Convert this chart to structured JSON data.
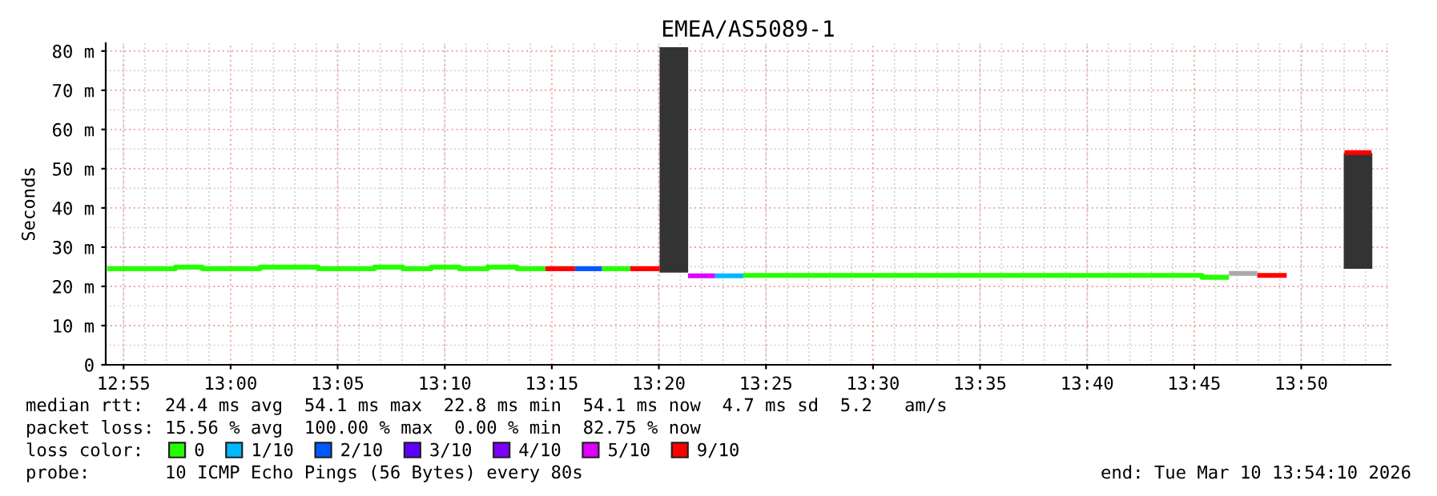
{
  "chart_data": {
    "type": "line",
    "title": "EMEA/AS5089-1",
    "ylabel": "Seconds",
    "xlim": [
      12.9028,
      13.9028
    ],
    "xticks": [
      {
        "value": 12.9167,
        "label": "12:55"
      },
      {
        "value": 13.0,
        "label": "13:00"
      },
      {
        "value": 13.0833,
        "label": "13:05"
      },
      {
        "value": 13.1667,
        "label": "13:10"
      },
      {
        "value": 13.25,
        "label": "13:15"
      },
      {
        "value": 13.3333,
        "label": "13:20"
      },
      {
        "value": 13.4167,
        "label": "13:25"
      },
      {
        "value": 13.5,
        "label": "13:30"
      },
      {
        "value": 13.5833,
        "label": "13:35"
      },
      {
        "value": 13.6667,
        "label": "13:40"
      },
      {
        "value": 13.75,
        "label": "13:45"
      },
      {
        "value": 13.8333,
        "label": "13:50"
      }
    ],
    "ylim": [
      0,
      82
    ],
    "yticks": [
      0,
      {
        "value": 10,
        "label": "10 m"
      },
      {
        "value": 20,
        "label": "20 m"
      },
      {
        "value": 30,
        "label": "30 m"
      },
      {
        "value": 40,
        "label": "40 m"
      },
      {
        "value": 50,
        "label": "50 m"
      },
      {
        "value": 60,
        "label": "60 m"
      },
      {
        "value": 70,
        "label": "70 m"
      },
      {
        "value": 80,
        "label": "80 m"
      }
    ],
    "grid": true,
    "legend": "bottom",
    "legend_title": "loss color:",
    "series": [
      {
        "type": "bar",
        "color": "#333333",
        "x": [
          13.345,
          13.8775
        ],
        "base": [
          23.5,
          24.5
        ],
        "values": [
          57.5,
          29.5
        ]
      },
      {
        "name": "0",
        "color": "#26ff00",
        "x": [
          12.904,
          12.957,
          12.957,
          12.978,
          12.978,
          13.023,
          13.023,
          13.068,
          13.068,
          13.112,
          13.112,
          13.134,
          13.134,
          13.156,
          13.156,
          13.178,
          13.178,
          13.2,
          13.2,
          13.223,
          13.223,
          13.245
        ],
        "values": [
          24.5,
          24.5,
          24.9,
          24.9,
          24.5,
          24.5,
          24.9,
          24.9,
          24.5,
          24.5,
          24.9,
          24.9,
          24.5,
          24.5,
          24.9,
          24.9,
          24.5,
          24.5,
          24.9,
          24.9,
          24.5,
          24.5
        ]
      },
      {
        "color": "#26ff00",
        "x": [
          13.289,
          13.311
        ],
        "values": [
          24.5,
          24.5
        ]
      },
      {
        "color": "#26ff00",
        "x": [
          13.399,
          13.756,
          13.756,
          13.777
        ],
        "values": [
          22.8,
          22.8,
          22.3,
          22.3
        ]
      },
      {
        "name": "1/10",
        "color": "#00b8ff",
        "x": [
          13.377,
          13.399
        ],
        "values": [
          22.7,
          22.7
        ]
      },
      {
        "name": "2/10",
        "color": "#0059ff",
        "x": [
          13.268,
          13.289
        ],
        "values": [
          24.5,
          24.5
        ]
      },
      {
        "name": "3/10",
        "color": "#5e00ff"
      },
      {
        "name": "4/10",
        "color": "#7e00ff"
      },
      {
        "name": "5/10",
        "color": "#dd00ff",
        "x": [
          13.356,
          13.377
        ],
        "values": [
          22.7,
          22.7
        ]
      },
      {
        "name": "9/10",
        "color": "#ff0000",
        "x": [
          13.245,
          13.268
        ],
        "values": [
          24.5,
          24.5
        ]
      },
      {
        "color": "#ff0000",
        "x": [
          13.311,
          13.334
        ],
        "values": [
          24.5,
          24.5
        ]
      },
      {
        "color": "#ff0000",
        "x": [
          13.799,
          13.822
        ],
        "values": [
          22.8,
          22.8
        ]
      },
      {
        "color": "#ff0000",
        "x": [
          13.867,
          13.888
        ],
        "values": [
          54.1,
          54.1
        ]
      },
      {
        "color": "#aaaaaa",
        "x": [
          13.777,
          13.799
        ],
        "values": [
          23.3,
          23.3
        ]
      }
    ],
    "annotations": [
      "median rtt:  24.4 ms avg  54.1 ms max  22.8 ms min  54.1 ms now  4.7 ms sd  5.2   am/s",
      "packet loss: 15.56 % avg  100.00 % max  0.00 % min  82.75 % now",
      "probe:       10 ICMP Echo Pings (56 Bytes) every 80s",
      "end: Tue Mar 10 13:54:10 2026"
    ]
  }
}
